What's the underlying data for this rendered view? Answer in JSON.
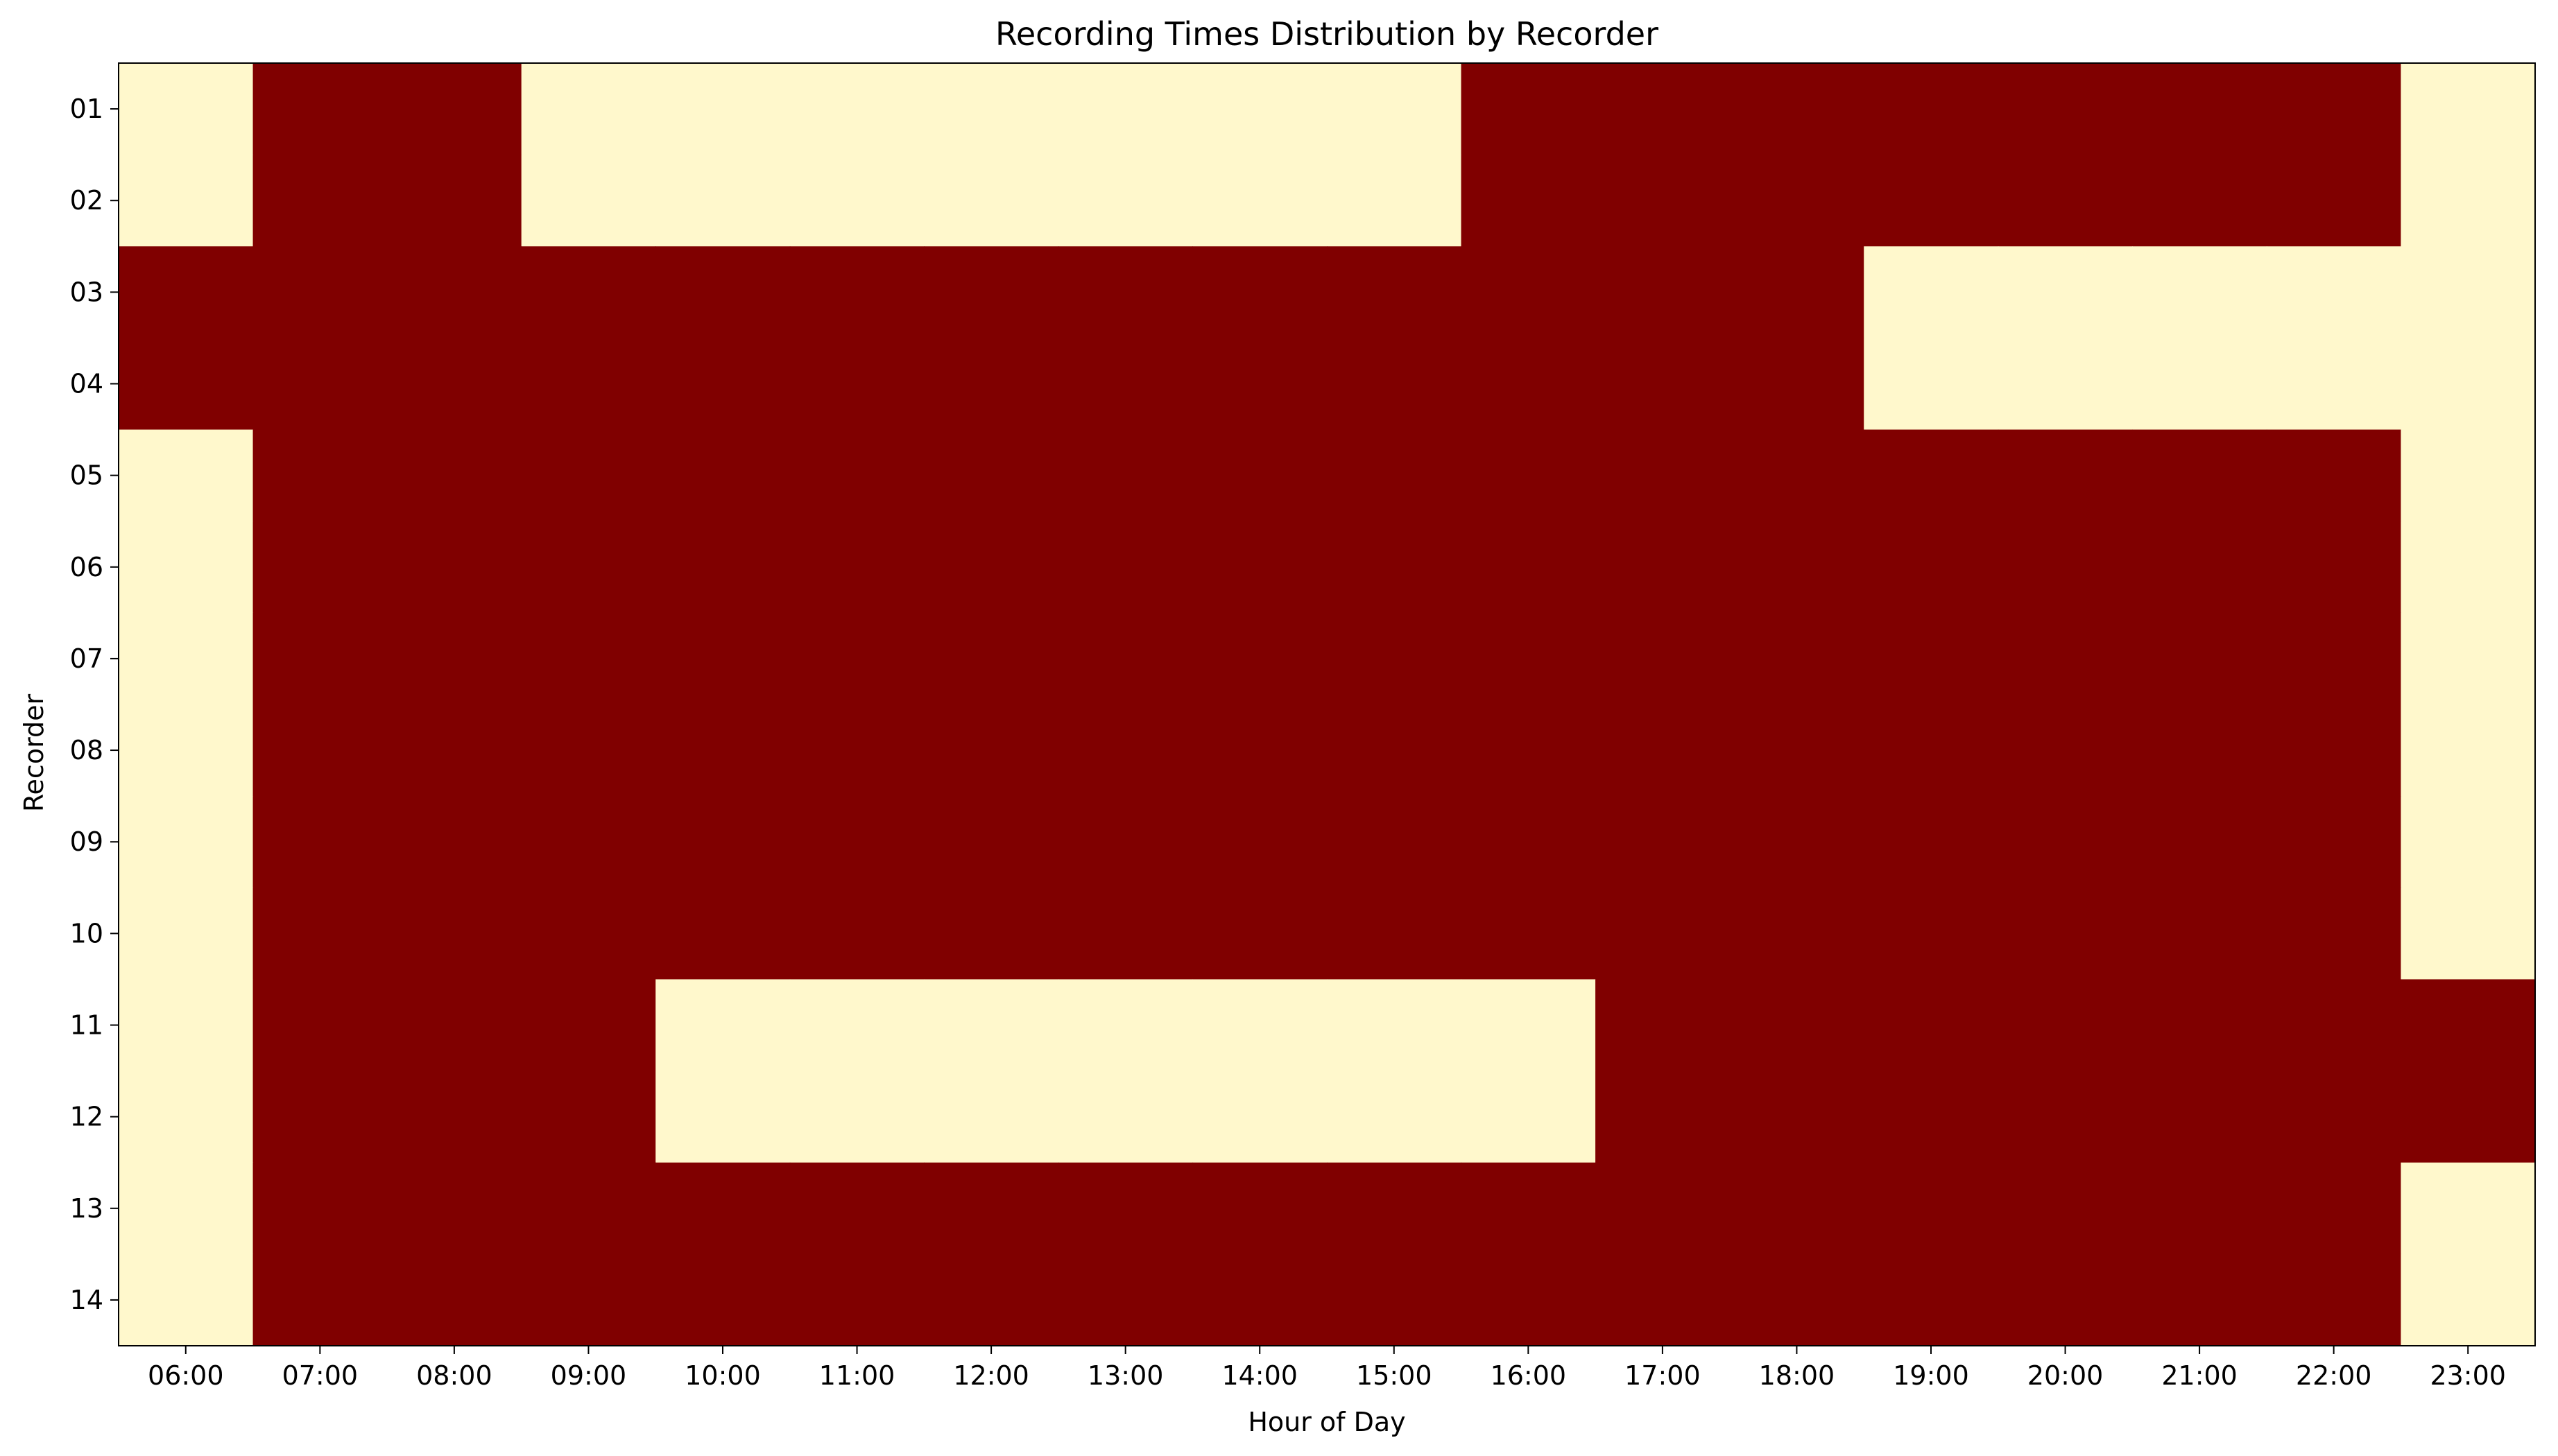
{
  "chart_data": {
    "type": "heatmap",
    "title": "Recording Times Distribution by Recorder",
    "xlabel": "Hour of Day",
    "ylabel": "Recorder",
    "x": [
      "06:00",
      "07:00",
      "08:00",
      "09:00",
      "10:00",
      "11:00",
      "12:00",
      "13:00",
      "14:00",
      "15:00",
      "16:00",
      "17:00",
      "18:00",
      "19:00",
      "20:00",
      "21:00",
      "22:00",
      "23:00"
    ],
    "y": [
      "01",
      "02",
      "03",
      "04",
      "05",
      "06",
      "07",
      "08",
      "09",
      "10",
      "11",
      "12",
      "13",
      "14"
    ],
    "values": [
      [
        0,
        1,
        1,
        0,
        0,
        0,
        0,
        0,
        0,
        0,
        1,
        1,
        1,
        1,
        1,
        1,
        1,
        0
      ],
      [
        0,
        1,
        1,
        0,
        0,
        0,
        0,
        0,
        0,
        0,
        1,
        1,
        1,
        1,
        1,
        1,
        1,
        0
      ],
      [
        1,
        1,
        1,
        1,
        1,
        1,
        1,
        1,
        1,
        1,
        1,
        1,
        1,
        0,
        0,
        0,
        0,
        0
      ],
      [
        1,
        1,
        1,
        1,
        1,
        1,
        1,
        1,
        1,
        1,
        1,
        1,
        1,
        0,
        0,
        0,
        0,
        0
      ],
      [
        0,
        1,
        1,
        1,
        1,
        1,
        1,
        1,
        1,
        1,
        1,
        1,
        1,
        1,
        1,
        1,
        1,
        0
      ],
      [
        0,
        1,
        1,
        1,
        1,
        1,
        1,
        1,
        1,
        1,
        1,
        1,
        1,
        1,
        1,
        1,
        1,
        0
      ],
      [
        0,
        1,
        1,
        1,
        1,
        1,
        1,
        1,
        1,
        1,
        1,
        1,
        1,
        1,
        1,
        1,
        1,
        0
      ],
      [
        0,
        1,
        1,
        1,
        1,
        1,
        1,
        1,
        1,
        1,
        1,
        1,
        1,
        1,
        1,
        1,
        1,
        0
      ],
      [
        0,
        1,
        1,
        1,
        1,
        1,
        1,
        1,
        1,
        1,
        1,
        1,
        1,
        1,
        1,
        1,
        1,
        0
      ],
      [
        0,
        1,
        1,
        1,
        1,
        1,
        1,
        1,
        1,
        1,
        1,
        1,
        1,
        1,
        1,
        1,
        1,
        0
      ],
      [
        0,
        1,
        1,
        1,
        0,
        0,
        0,
        0,
        0,
        0,
        0,
        1,
        1,
        1,
        1,
        1,
        1,
        1
      ],
      [
        0,
        1,
        1,
        1,
        0,
        0,
        0,
        0,
        0,
        0,
        0,
        1,
        1,
        1,
        1,
        1,
        1,
        1
      ],
      [
        0,
        1,
        1,
        1,
        1,
        1,
        1,
        1,
        1,
        1,
        1,
        1,
        1,
        1,
        1,
        1,
        1,
        0
      ],
      [
        0,
        1,
        1,
        1,
        1,
        1,
        1,
        1,
        1,
        1,
        1,
        1,
        1,
        1,
        1,
        1,
        1,
        0
      ]
    ],
    "colors": {
      "low": "#fff8cc",
      "high": "#800000"
    },
    "grid": false,
    "legend": "none"
  }
}
